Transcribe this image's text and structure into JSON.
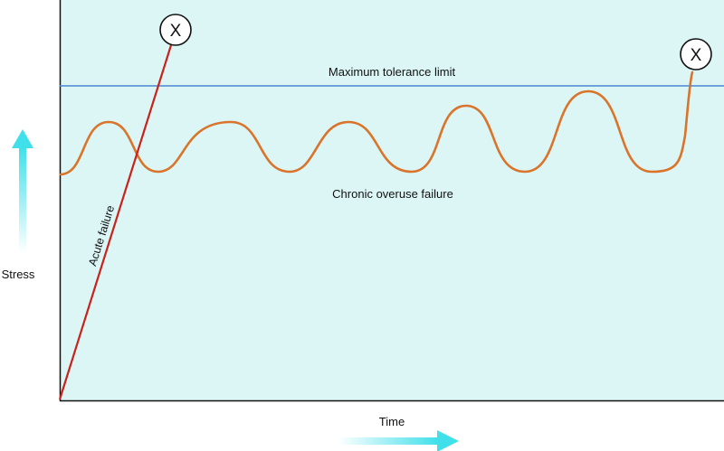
{
  "labels": {
    "max_limit": "Maximum tolerance limit",
    "chronic": "Chronic overuse failure",
    "acute": "Acute failure",
    "y_axis": "Stress",
    "x_axis": "Time",
    "failure_marker": "X"
  },
  "colors": {
    "plot_background": "#dcf6f6",
    "axis": "#111111",
    "tolerance_line": "#4a86d0",
    "chronic_curve": "#d9742a",
    "acute_line": "#c7221c",
    "arrow": "#3fe0ea",
    "marker_fill": "#ffffff"
  },
  "icons": {
    "y_arrow": "arrow-up-icon",
    "x_arrow": "arrow-right-icon",
    "failure": "x-circle-icon"
  }
}
